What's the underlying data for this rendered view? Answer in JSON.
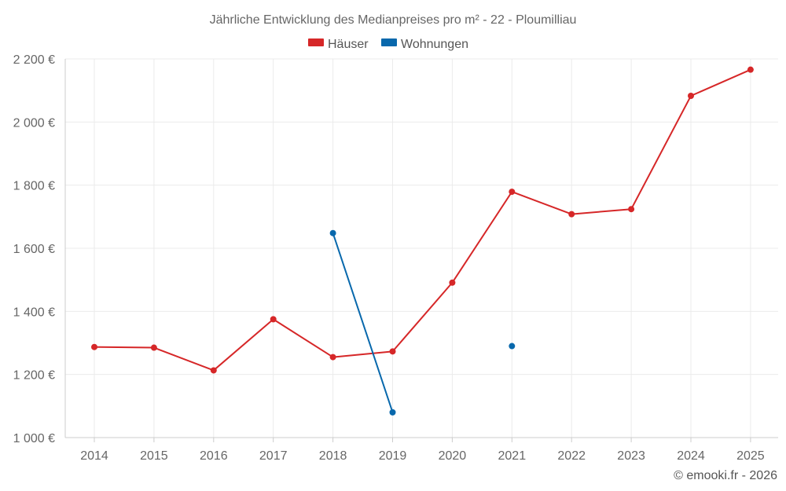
{
  "chart_data": {
    "type": "line",
    "title": "Jährliche Entwicklung des Medianpreises pro m² - 22 - Ploumilliau",
    "x": [
      "2014",
      "2015",
      "2016",
      "2017",
      "2018",
      "2019",
      "2020",
      "2021",
      "2022",
      "2023",
      "2024",
      "2025"
    ],
    "series": [
      {
        "name": "Häuser",
        "color": "#d62728",
        "values": [
          1287,
          1285,
          1213,
          1375,
          1255,
          1273,
          1491,
          1779,
          1708,
          1724,
          2083,
          2166
        ]
      },
      {
        "name": "Wohnungen",
        "color": "#0868ac",
        "values": [
          null,
          null,
          null,
          null,
          1648,
          1080,
          null,
          1290,
          null,
          null,
          null,
          null
        ]
      }
    ],
    "ylim": [
      1000,
      2200
    ],
    "yticks": [
      1000,
      1200,
      1400,
      1600,
      1800,
      2000,
      2200
    ],
    "ytick_labels": [
      "1 000 €",
      "1 200 €",
      "1 400 €",
      "1 600 €",
      "1 800 €",
      "2 000 €",
      "2 200 €"
    ],
    "xlabel": "",
    "ylabel": "",
    "grid": true,
    "legend_position": "top-center"
  },
  "credit": "© emooki.fr - 2026"
}
